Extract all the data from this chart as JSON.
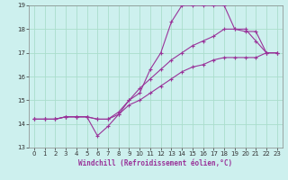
{
  "xlabel": "Windchill (Refroidissement éolien,°C)",
  "xlim": [
    -0.5,
    23.5
  ],
  "ylim": [
    13,
    19
  ],
  "xticks": [
    0,
    1,
    2,
    3,
    4,
    5,
    6,
    7,
    8,
    9,
    10,
    11,
    12,
    13,
    14,
    15,
    16,
    17,
    18,
    19,
    20,
    21,
    22,
    23
  ],
  "yticks": [
    13,
    14,
    15,
    16,
    17,
    18,
    19
  ],
  "bg_color": "#cdf0ee",
  "grid_color": "#aaddcc",
  "line_color": "#993399",
  "line1_x": [
    0,
    1,
    2,
    3,
    4,
    5,
    6,
    7,
    8,
    9,
    10,
    11,
    12,
    13,
    14,
    15,
    16,
    17,
    18,
    19,
    20,
    21,
    22,
    23
  ],
  "line1_y": [
    14.2,
    14.2,
    14.2,
    14.3,
    14.3,
    14.3,
    13.5,
    13.9,
    14.4,
    15.0,
    15.3,
    16.3,
    17.0,
    18.3,
    19.0,
    19.0,
    19.0,
    19.0,
    19.0,
    18.0,
    17.9,
    17.9,
    17.0,
    17.0
  ],
  "line2_x": [
    0,
    1,
    2,
    3,
    4,
    5,
    6,
    7,
    8,
    9,
    10,
    11,
    12,
    13,
    14,
    15,
    16,
    17,
    18,
    19,
    20,
    21,
    22,
    23
  ],
  "line2_y": [
    14.2,
    14.2,
    14.2,
    14.3,
    14.3,
    14.3,
    14.2,
    14.2,
    14.5,
    15.0,
    15.5,
    15.9,
    16.3,
    16.7,
    17.0,
    17.3,
    17.5,
    17.7,
    18.0,
    18.0,
    18.0,
    17.5,
    17.0,
    17.0
  ],
  "line3_x": [
    0,
    1,
    2,
    3,
    4,
    5,
    6,
    7,
    8,
    9,
    10,
    11,
    12,
    13,
    14,
    15,
    16,
    17,
    18,
    19,
    20,
    21,
    22,
    23
  ],
  "line3_y": [
    14.2,
    14.2,
    14.2,
    14.3,
    14.3,
    14.3,
    14.2,
    14.2,
    14.4,
    14.8,
    15.0,
    15.3,
    15.6,
    15.9,
    16.2,
    16.4,
    16.5,
    16.7,
    16.8,
    16.8,
    16.8,
    16.8,
    17.0,
    17.0
  ],
  "tick_fontsize": 5,
  "xlabel_fontsize": 5.5,
  "marker_size": 3.0,
  "line_width": 0.8
}
